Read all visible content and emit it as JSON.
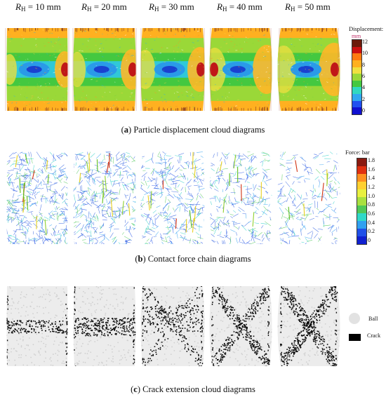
{
  "headers": [
    {
      "prefix": "R",
      "sub": "H",
      "value": " = 10 mm"
    },
    {
      "prefix": "R",
      "sub": "H",
      "value": " = 20 mm"
    },
    {
      "prefix": "R",
      "sub": "H",
      "value": " = 30 mm"
    },
    {
      "prefix": "R",
      "sub": "H",
      "value": " = 40 mm"
    },
    {
      "prefix": "R",
      "sub": "H",
      "value": " = 50 mm"
    }
  ],
  "captions": {
    "a": {
      "letter": "a",
      "text": " Particle displacement cloud diagrams"
    },
    "b": {
      "letter": "b",
      "text": " Contact force chain diagrams"
    },
    "c": {
      "letter": "c",
      "text": " Crack extension cloud diagrams"
    }
  },
  "displacement_legend": {
    "title": "Displacement:",
    "unit": "mm",
    "labels": [
      "12",
      "10",
      "8",
      "6",
      "4",
      "2",
      "0"
    ],
    "colors": [
      "#6b1a0a",
      "#cc1010",
      "#ff7a10",
      "#ffb020",
      "#f0e040",
      "#9ad838",
      "#44c840",
      "#30d8c0",
      "#30a8f0",
      "#2050f0",
      "#1010d0"
    ]
  },
  "force_legend": {
    "title": "Force: bar",
    "labels": [
      "1.8",
      "1.6",
      "1.4",
      "1.2",
      "1.0",
      "0.8",
      "0.6",
      "0.4",
      "0.2",
      "0"
    ],
    "colors": [
      "#8a1a10",
      "#e03010",
      "#ff9020",
      "#ffd030",
      "#e8f040",
      "#a8e040",
      "#50c858",
      "#30d8c8",
      "#30a0f0",
      "#2050e8",
      "#1020d0"
    ]
  },
  "crack_legend": {
    "ball": "Ball",
    "crack": "Crack"
  }
}
